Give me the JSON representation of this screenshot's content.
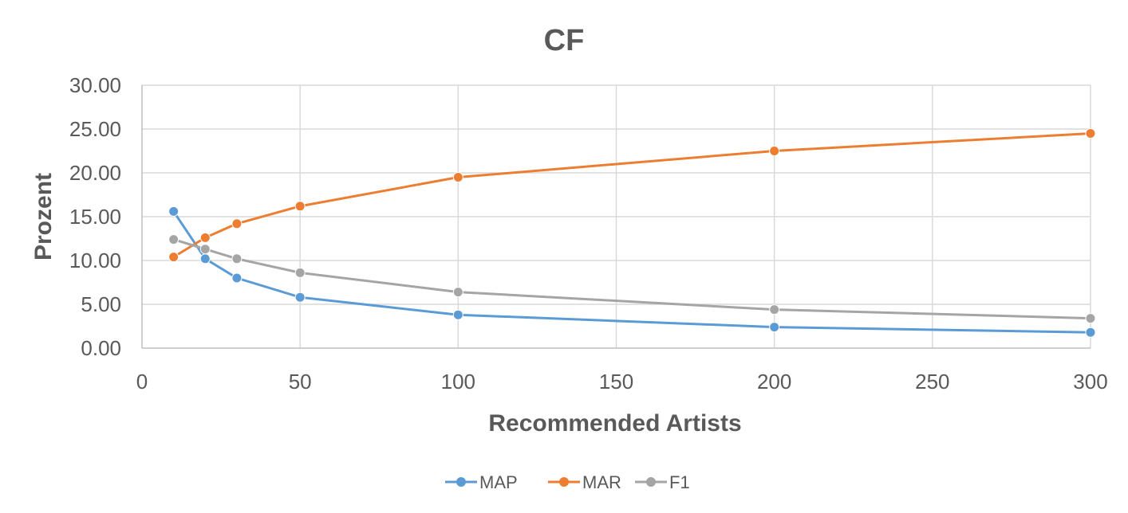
{
  "chart_data": {
    "type": "line",
    "title": "CF",
    "xlabel": "Recommended Artists",
    "ylabel": "Prozent",
    "xlim": [
      0,
      300
    ],
    "ylim": [
      0,
      30
    ],
    "x_ticks": [
      "0",
      "50",
      "100",
      "150",
      "200",
      "250",
      "300"
    ],
    "y_ticks": [
      "0.00",
      "5.00",
      "10.00",
      "15.00",
      "20.00",
      "25.00",
      "30.00"
    ],
    "grid": true,
    "legend_position": "bottom",
    "x": [
      10,
      20,
      30,
      50,
      100,
      200,
      300
    ],
    "series": [
      {
        "name": "MAP",
        "color": "#5b9bd5",
        "values": [
          15.6,
          10.2,
          8.0,
          5.8,
          3.8,
          2.4,
          1.8
        ]
      },
      {
        "name": "MAR",
        "color": "#ed7d31",
        "values": [
          10.4,
          12.6,
          14.2,
          16.2,
          19.5,
          22.5,
          24.5
        ]
      },
      {
        "name": "F1",
        "color": "#a5a5a5",
        "values": [
          12.4,
          11.3,
          10.2,
          8.6,
          6.4,
          4.4,
          3.4
        ]
      }
    ]
  }
}
